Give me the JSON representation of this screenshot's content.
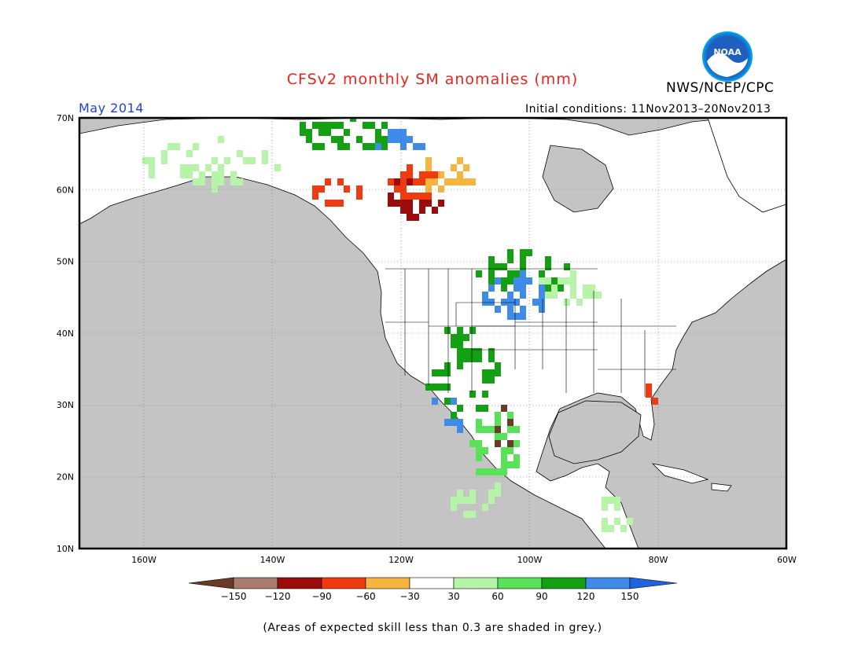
{
  "title": "CFSv2 monthly SM anomalies (mm)",
  "org": "NWS/NCEP/CPC",
  "logo_text": "NOAA",
  "period": "May 2014",
  "initial_conditions": "Initial conditions: 11Nov2013–20Nov2013",
  "note": "(Areas of expected skill less than 0.3 are shaded in grey.)",
  "map": {
    "lon_range": [
      -170,
      -60
    ],
    "lat_range": [
      10,
      70
    ],
    "lon_labels": [
      "160W",
      "140W",
      "120W",
      "100W",
      "80W",
      "60W"
    ],
    "lat_labels": [
      "70N",
      "60N",
      "50N",
      "40N",
      "30N",
      "20N",
      "10N"
    ],
    "land_color": "#ffffff",
    "skill_mask_color": "#c4c4c4"
  },
  "colorbar": {
    "ticks": [
      "−150",
      "−120",
      "−90",
      "−60",
      "−30",
      "30",
      "60",
      "90",
      "120",
      "150"
    ],
    "colors": [
      "#6b3b2a",
      "#a87b6e",
      "#9c0b0b",
      "#f03a10",
      "#f7b53f",
      "#ffffff",
      "#b6f5a8",
      "#57e257",
      "#13a013",
      "#3f8bea",
      "#1f63e0"
    ]
  },
  "anomaly_regions": [
    {
      "label": "northern plains / upper midwest",
      "category": "120 to 150",
      "color": "#3f8bea"
    },
    {
      "label": "western canada",
      "category": "-120 to -90",
      "color": "#9c0b0b"
    },
    {
      "label": "southern rockies",
      "category": "90 to 120",
      "color": "#13a013"
    },
    {
      "label": "mexico",
      "category": "60 to 90",
      "color": "#57e257"
    },
    {
      "label": "alaska",
      "category": "30 to 60",
      "color": "#b6f5a8"
    }
  ]
}
